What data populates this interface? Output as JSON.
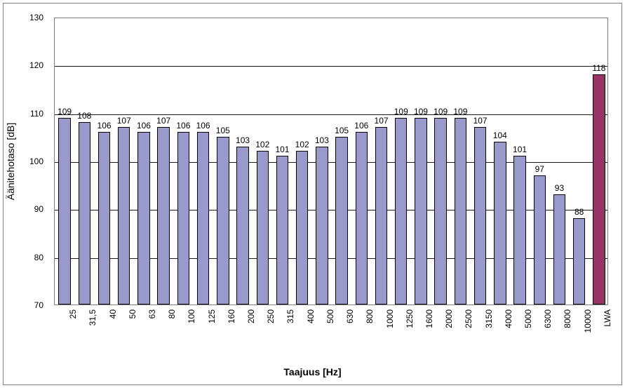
{
  "chart": {
    "type": "bar",
    "title": "",
    "xlabel": "Taajuus [Hz]",
    "ylabel": "Äänitehotaso [dB]",
    "ylim": [
      70,
      130
    ],
    "ytick_step": 10,
    "yticks": [
      70,
      80,
      90,
      100,
      110,
      120,
      130
    ],
    "grid_color": "#000000",
    "plot_border_color": "#808080",
    "plot_background": "#ffffff",
    "frame_background": "#ffffff",
    "label_fontsize": 14,
    "tick_fontsize": 12,
    "data_label_fontsize": 12,
    "x_tick_rotation": -90,
    "bar_width_ratio": 0.62,
    "categories": [
      "25",
      "31,5",
      "40",
      "50",
      "63",
      "80",
      "100",
      "125",
      "160",
      "200",
      "250",
      "315",
      "400",
      "500",
      "630",
      "800",
      "1000",
      "1250",
      "1600",
      "2000",
      "2500",
      "3150",
      "4000",
      "5000",
      "6300",
      "8000",
      "10000",
      "LWA"
    ],
    "values": [
      109,
      108,
      106,
      107,
      106,
      107,
      106,
      106,
      105,
      103,
      102,
      101,
      102,
      103,
      105,
      106,
      107,
      109,
      109,
      109,
      109,
      107,
      104,
      101,
      97,
      93,
      88,
      118
    ],
    "series_colors": [
      "#9999cc",
      "#9999cc",
      "#9999cc",
      "#9999cc",
      "#9999cc",
      "#9999cc",
      "#9999cc",
      "#9999cc",
      "#9999cc",
      "#9999cc",
      "#9999cc",
      "#9999cc",
      "#9999cc",
      "#9999cc",
      "#9999cc",
      "#9999cc",
      "#9999cc",
      "#9999cc",
      "#9999cc",
      "#9999cc",
      "#9999cc",
      "#9999cc",
      "#9999cc",
      "#9999cc",
      "#9999cc",
      "#9999cc",
      "#9999cc",
      "#993366"
    ],
    "bar_border_color": "#000000"
  }
}
